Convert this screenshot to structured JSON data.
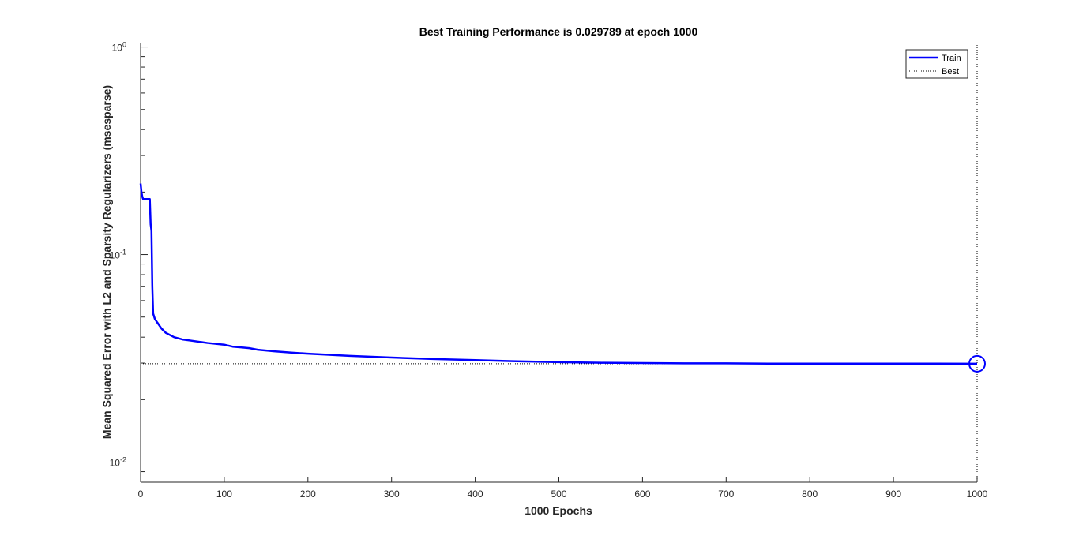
{
  "chart_data": {
    "type": "line",
    "title": "Best Training Performance is 0.029789 at epoch 1000",
    "xlabel": "1000 Epochs",
    "ylabel": "Mean Squared Error with L2 and Sparsity Regularizers  (msesparse)",
    "xlim": [
      0,
      1000
    ],
    "ylim": [
      0.008,
      1.05
    ],
    "yscale": "log",
    "x_ticks": [
      0,
      100,
      200,
      300,
      400,
      500,
      600,
      700,
      800,
      900,
      1000
    ],
    "y_ticks": [
      {
        "value": 0.01,
        "base": "10",
        "exp": "-2"
      },
      {
        "value": 0.1,
        "base": "10",
        "exp": "-1"
      },
      {
        "value": 1,
        "base": "10",
        "exp": "0"
      }
    ],
    "grid": false,
    "legend_position": "top-right",
    "series": [
      {
        "name": "Train",
        "color": "#0000ff",
        "style": "solid",
        "x": [
          0,
          1,
          2,
          3,
          4,
          5,
          8,
          10,
          11,
          12,
          13,
          14,
          15,
          17,
          20,
          25,
          30,
          40,
          50,
          60,
          80,
          100,
          110,
          120,
          130,
          140,
          160,
          180,
          200,
          250,
          300,
          350,
          400,
          450,
          500,
          550,
          600,
          650,
          700,
          750,
          800,
          850,
          900,
          950,
          1000
        ],
        "y": [
          0.22,
          0.2,
          0.19,
          0.185,
          0.185,
          0.185,
          0.185,
          0.185,
          0.185,
          0.14,
          0.13,
          0.07,
          0.052,
          0.049,
          0.047,
          0.044,
          0.042,
          0.04,
          0.039,
          0.0385,
          0.0375,
          0.0368,
          0.036,
          0.0357,
          0.0354,
          0.0348,
          0.0342,
          0.0337,
          0.0333,
          0.0325,
          0.0319,
          0.0314,
          0.031,
          0.0306,
          0.0303,
          0.0301,
          0.03,
          0.0299,
          0.0299,
          0.0298,
          0.0298,
          0.0298,
          0.0298,
          0.0298,
          0.029789
        ]
      },
      {
        "name": "Best",
        "color": "#000000",
        "style": "dotted",
        "value": 0.029789
      }
    ],
    "best_marker": {
      "x": 1000,
      "y": 0.029789,
      "color": "#0000ff"
    }
  }
}
